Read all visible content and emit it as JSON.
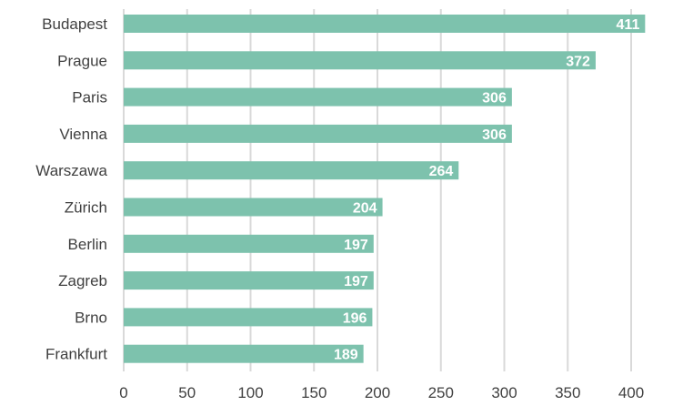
{
  "chart_data": {
    "type": "bar",
    "orientation": "horizontal",
    "categories": [
      "Budapest",
      "Prague",
      "Paris",
      "Vienna",
      "Warszawa",
      "Zürich",
      "Berlin",
      "Zagreb",
      "Brno",
      "Frankfurt"
    ],
    "values": [
      411,
      372,
      306,
      306,
      264,
      204,
      197,
      197,
      196,
      189
    ],
    "data_labels": [
      "411",
      "372",
      "306",
      "306",
      "264",
      "204",
      "197",
      "197",
      "196",
      "189"
    ],
    "xlim": [
      0,
      400
    ],
    "x_ticks": [
      0,
      50,
      100,
      150,
      200,
      250,
      300,
      350,
      400
    ],
    "x_tick_labels": [
      "0",
      "50",
      "100",
      "150",
      "200",
      "250",
      "300",
      "350",
      "400"
    ],
    "grid": "vertical",
    "legend": "none",
    "colors": {
      "bar": "#7dc2ad",
      "grid": "#d9d9d9",
      "text": "#404040",
      "data_label": "#ffffff"
    }
  }
}
